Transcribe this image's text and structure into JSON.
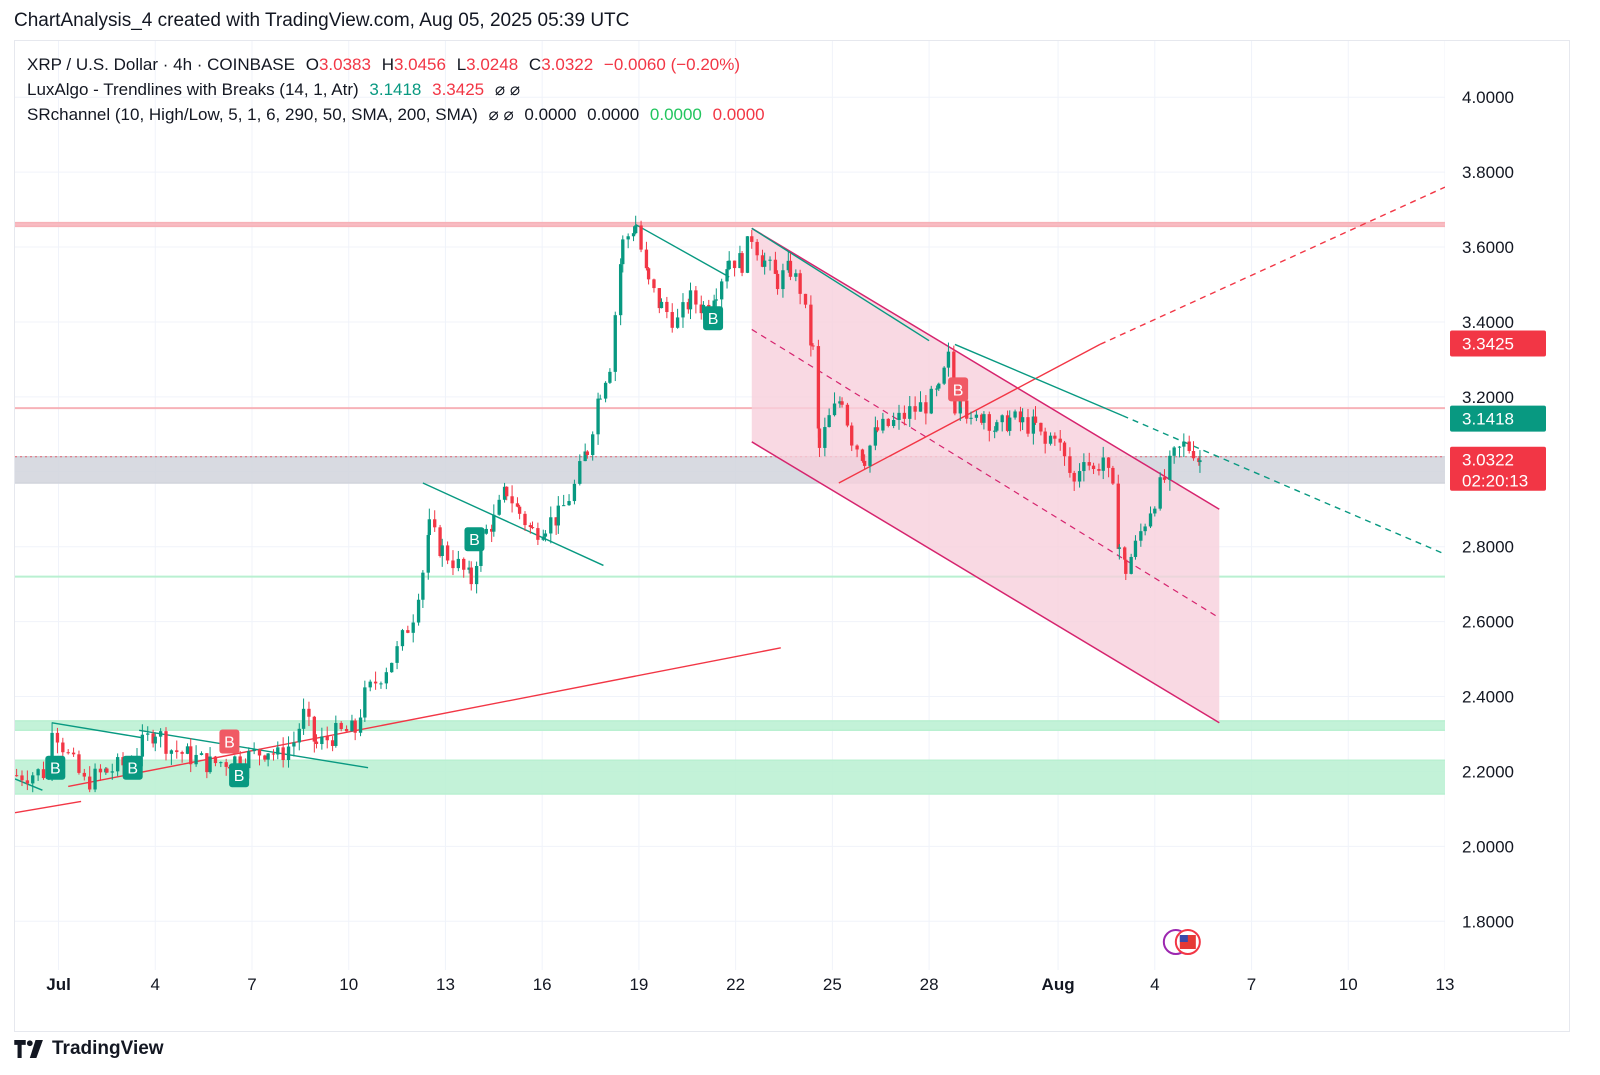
{
  "header": {
    "title": "ChartAnalysis_4 created with TradingView.com, Aug 05, 2025 05:39 UTC"
  },
  "legend": {
    "symbol": "XRP / U.S. Dollar · 4h · COINBASE",
    "open_label": "O",
    "open": "3.0383",
    "high_label": "H",
    "high": "3.0456",
    "low_label": "L",
    "low": "3.0248",
    "close_label": "C",
    "close": "3.0322",
    "change": "−0.0060 (−0.20%)",
    "ind1_name": "LuxAlgo - Trendlines with Breaks (14, 1, Atr)",
    "ind1_v1": "3.1418",
    "ind1_v2": "3.3425",
    "ind1_na": "⌀  ⌀",
    "ind2_name": "SRchannel (10, High/Low, 5, 1, 6, 290, 50, SMA, 200, SMA)",
    "ind2_na": "⌀  ⌀",
    "ind2_v1": "0.0000",
    "ind2_v2": "0.0000",
    "ind2_v3": "0.0000",
    "ind2_v4": "0.0000"
  },
  "price_tags": {
    "upper": "3.3425",
    "upper_color": "#f23645",
    "lower": "3.1418",
    "lower_color": "#089981",
    "last": "3.0322",
    "countdown": "02:20:13",
    "last_color": "#f23645"
  },
  "footer": {
    "brand": "TradingView"
  },
  "chart_data": {
    "type": "candlestick",
    "symbol": "XRP / U.S. Dollar",
    "timeframe": "4h",
    "exchange": "COINBASE",
    "y_ticks": [
      "4.0000",
      "3.8000",
      "3.6000",
      "3.4000",
      "3.2000",
      "3.0000",
      "2.8000",
      "2.6000",
      "2.4000",
      "2.2000",
      "2.0000",
      "1.8000"
    ],
    "y_tick_values": [
      4.0,
      3.8,
      3.6,
      3.4,
      3.2,
      3.0,
      2.8,
      2.6,
      2.4,
      2.2,
      2.0,
      1.8
    ],
    "ylim": [
      1.67,
      4.15
    ],
    "x_ticks": [
      {
        "label": "Jul",
        "day": 0
      },
      {
        "label": "4",
        "day": 3
      },
      {
        "label": "7",
        "day": 6
      },
      {
        "label": "10",
        "day": 9
      },
      {
        "label": "13",
        "day": 12
      },
      {
        "label": "16",
        "day": 15
      },
      {
        "label": "19",
        "day": 18
      },
      {
        "label": "22",
        "day": 21
      },
      {
        "label": "25",
        "day": 24
      },
      {
        "label": "28",
        "day": 27
      },
      {
        "label": "Aug",
        "day": 31
      },
      {
        "label": "4",
        "day": 34
      },
      {
        "label": "7",
        "day": 37
      },
      {
        "label": "10",
        "day": 40
      },
      {
        "label": "13",
        "day": 43
      }
    ],
    "xlim_days": [
      -1.35,
      43.0
    ],
    "close_path": [
      [
        -1.3,
        2.19
      ],
      [
        -0.3,
        2.2
      ],
      [
        -0.2,
        2.33
      ],
      [
        0.3,
        2.24
      ],
      [
        0.8,
        2.17
      ],
      [
        1.5,
        2.2
      ],
      [
        2.1,
        2.22
      ],
      [
        2.6,
        2.27
      ],
      [
        3.0,
        2.31
      ],
      [
        3.5,
        2.26
      ],
      [
        4.1,
        2.24
      ],
      [
        4.7,
        2.22
      ],
      [
        5.3,
        2.23
      ],
      [
        5.9,
        2.24
      ],
      [
        6.5,
        2.26
      ],
      [
        6.8,
        2.24
      ],
      [
        7.3,
        2.28
      ],
      [
        7.6,
        2.35
      ],
      [
        8.0,
        2.27
      ],
      [
        8.6,
        2.3
      ],
      [
        9.2,
        2.31
      ],
      [
        9.5,
        2.4
      ],
      [
        10.0,
        2.46
      ],
      [
        10.5,
        2.52
      ],
      [
        11.0,
        2.62
      ],
      [
        11.3,
        2.74
      ],
      [
        11.5,
        2.85
      ],
      [
        11.9,
        2.79
      ],
      [
        12.4,
        2.75
      ],
      [
        12.8,
        2.71
      ],
      [
        13.1,
        2.82
      ],
      [
        13.5,
        2.87
      ],
      [
        13.9,
        2.95
      ],
      [
        14.3,
        2.89
      ],
      [
        14.7,
        2.84
      ],
      [
        15.1,
        2.86
      ],
      [
        15.5,
        2.88
      ],
      [
        16.0,
        2.96
      ],
      [
        16.4,
        3.06
      ],
      [
        16.8,
        3.22
      ],
      [
        17.1,
        3.29
      ],
      [
        17.5,
        3.61
      ],
      [
        17.9,
        3.66
      ],
      [
        18.3,
        3.5
      ],
      [
        18.7,
        3.44
      ],
      [
        19.2,
        3.4
      ],
      [
        19.6,
        3.46
      ],
      [
        20.0,
        3.44
      ],
      [
        20.4,
        3.49
      ],
      [
        20.8,
        3.57
      ],
      [
        21.2,
        3.56
      ],
      [
        21.5,
        3.63
      ],
      [
        21.9,
        3.56
      ],
      [
        22.3,
        3.51
      ],
      [
        22.7,
        3.54
      ],
      [
        23.0,
        3.49
      ],
      [
        23.4,
        3.32
      ],
      [
        23.6,
        3.06
      ],
      [
        23.9,
        3.14
      ],
      [
        24.3,
        3.2
      ],
      [
        24.6,
        3.09
      ],
      [
        25.0,
        3.04
      ],
      [
        25.4,
        3.11
      ],
      [
        25.9,
        3.13
      ],
      [
        26.4,
        3.16
      ],
      [
        26.9,
        3.18
      ],
      [
        27.3,
        3.21
      ],
      [
        27.6,
        3.3
      ],
      [
        27.8,
        3.18
      ],
      [
        28.0,
        3.22
      ],
      [
        28.3,
        3.12
      ],
      [
        28.7,
        3.16
      ],
      [
        29.1,
        3.11
      ],
      [
        29.5,
        3.14
      ],
      [
        29.9,
        3.13
      ],
      [
        30.3,
        3.12
      ],
      [
        30.6,
        3.07
      ],
      [
        30.9,
        3.11
      ],
      [
        31.2,
        3.03
      ],
      [
        31.5,
        2.97
      ],
      [
        31.8,
        3.05
      ],
      [
        32.1,
        3.0
      ],
      [
        32.4,
        3.04
      ],
      [
        32.7,
        2.94
      ],
      [
        32.9,
        2.8
      ],
      [
        33.1,
        2.74
      ],
      [
        33.4,
        2.8
      ],
      [
        33.7,
        2.87
      ],
      [
        34.0,
        2.93
      ],
      [
        34.3,
        2.98
      ],
      [
        34.6,
        3.04
      ],
      [
        34.9,
        3.07
      ],
      [
        35.2,
        3.06
      ],
      [
        35.4,
        3.03
      ]
    ],
    "break_labels": [
      {
        "day": -0.1,
        "price": 2.21,
        "text": "B",
        "kind": "bull"
      },
      {
        "day": 2.3,
        "price": 2.21,
        "text": "B",
        "kind": "bull"
      },
      {
        "day": 5.3,
        "price": 2.28,
        "text": "B",
        "kind": "bear"
      },
      {
        "day": 5.6,
        "price": 2.19,
        "text": "B",
        "kind": "bull"
      },
      {
        "day": 12.9,
        "price": 2.82,
        "text": "B",
        "kind": "bull"
      },
      {
        "day": 20.3,
        "price": 3.41,
        "text": "B",
        "kind": "bull"
      },
      {
        "day": 27.9,
        "price": 3.22,
        "text": "B",
        "kind": "bear"
      }
    ],
    "zones": [
      {
        "kind": "resistance",
        "from": 3.655,
        "to": 3.665,
        "color": "#f7b2b8"
      },
      {
        "kind": "resistance-line",
        "at": 3.17,
        "color": "#f7b2b8"
      },
      {
        "kind": "neutral",
        "from": 2.97,
        "to": 3.04,
        "color": "#d1d4dc"
      },
      {
        "kind": "support-line",
        "at": 2.72,
        "color": "#b9f0d1"
      },
      {
        "kind": "support",
        "from": 2.31,
        "to": 2.335,
        "color": "#b9f0d1"
      },
      {
        "kind": "support",
        "from": 2.14,
        "to": 2.23,
        "color": "#b9f0d1"
      }
    ],
    "descending_channel": {
      "upper": [
        [
          21.5,
          3.65
        ],
        [
          36.0,
          2.9
        ]
      ],
      "lower": [
        [
          21.5,
          3.08
        ],
        [
          36.0,
          2.33
        ]
      ],
      "mid": [
        [
          21.5,
          3.38
        ],
        [
          36.0,
          2.61
        ]
      ],
      "fill": "#f8cfdc"
    },
    "trendlines": [
      {
        "from": [
          0.3,
          2.16
        ],
        "to": [
          22.4,
          2.53
        ],
        "color": "#f23645",
        "style": "solid"
      },
      {
        "from": [
          -1.35,
          2.09
        ],
        "to": [
          0.7,
          2.12
        ],
        "color": "#f23645",
        "style": "solid"
      },
      {
        "from": [
          24.2,
          2.97
        ],
        "to": [
          32.3,
          3.34
        ],
        "color": "#f23645",
        "style": "solid"
      },
      {
        "from": [
          32.3,
          3.34
        ],
        "to": [
          43.0,
          3.76
        ],
        "color": "#f23645",
        "style": "dashed"
      },
      {
        "from": [
          17.9,
          3.66
        ],
        "to": [
          20.8,
          3.52
        ],
        "color": "#089981",
        "style": "solid"
      },
      {
        "from": [
          21.5,
          3.65
        ],
        "to": [
          27.0,
          3.35
        ],
        "color": "#089981",
        "style": "solid"
      },
      {
        "from": [
          27.8,
          3.34
        ],
        "to": [
          33.0,
          3.15
        ],
        "color": "#089981",
        "style": "solid"
      },
      {
        "from": [
          33.0,
          3.15
        ],
        "to": [
          43.0,
          2.78
        ],
        "color": "#089981",
        "style": "dashed"
      },
      {
        "from": [
          11.3,
          2.97
        ],
        "to": [
          16.9,
          2.75
        ],
        "color": "#089981",
        "style": "solid"
      },
      {
        "from": [
          -0.2,
          2.33
        ],
        "to": [
          2.6,
          2.29
        ],
        "color": "#089981",
        "style": "solid"
      },
      {
        "from": [
          2.5,
          2.31
        ],
        "to": [
          9.6,
          2.21
        ],
        "color": "#089981",
        "style": "solid"
      },
      {
        "from": [
          -1.35,
          2.18
        ],
        "to": [
          -0.5,
          2.15
        ],
        "color": "#089981",
        "style": "solid"
      }
    ]
  }
}
